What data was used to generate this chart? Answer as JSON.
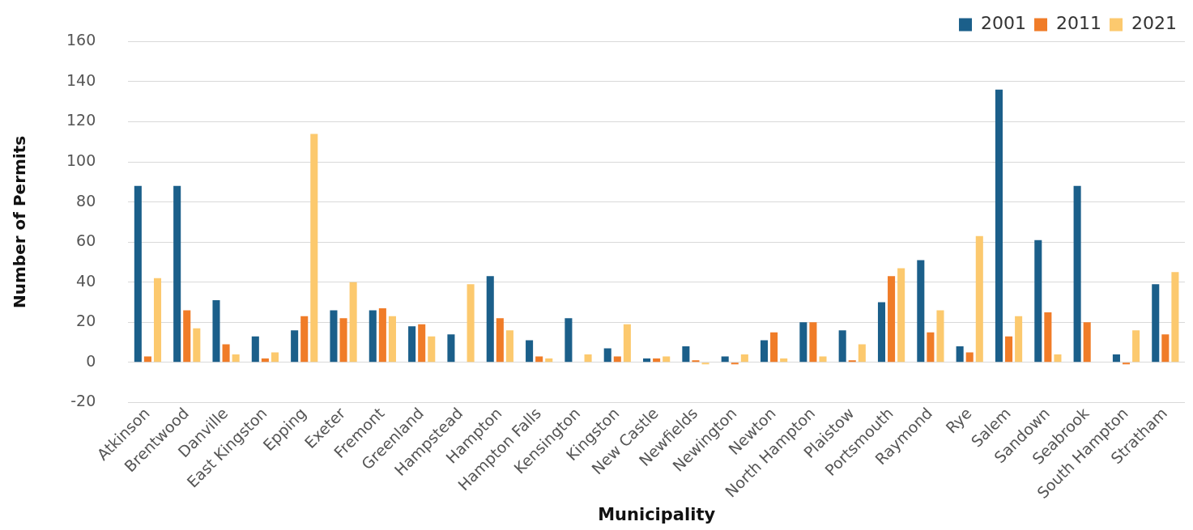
{
  "chart_data": {
    "type": "bar",
    "xlabel": "Municipality",
    "ylabel": "Number of Permits",
    "categories": [
      "Atkinson",
      "Brentwood",
      "Danville",
      "East Kingston",
      "Epping",
      "Exeter",
      "Fremont",
      "Greenland",
      "Hampstead",
      "Hampton",
      "Hampton Falls",
      "Kensington",
      "Kingston",
      "New Castle",
      "Newfields",
      "Newington",
      "Newton",
      "North Hampton",
      "Plaistow",
      "Portsmouth",
      "Raymond",
      "Rye",
      "Salem",
      "Sandown",
      "Seabrook",
      "South Hampton",
      "Stratham"
    ],
    "series": [
      {
        "name": "2001",
        "color": "#1b5f8a",
        "values": [
          88,
          88,
          31,
          13,
          16,
          26,
          26,
          18,
          14,
          43,
          11,
          22,
          7,
          2,
          8,
          3,
          11,
          20,
          16,
          30,
          51,
          8,
          136,
          61,
          88,
          4,
          39
        ]
      },
      {
        "name": "2011",
        "color": "#f07c28",
        "values": [
          3,
          26,
          9,
          2,
          23,
          22,
          27,
          19,
          0,
          22,
          3,
          0,
          3,
          2,
          1,
          -1,
          15,
          20,
          1,
          43,
          15,
          5,
          13,
          25,
          20,
          -1,
          14
        ]
      },
      {
        "name": "2021",
        "color": "#fcc96e",
        "values": [
          42,
          17,
          4,
          5,
          114,
          40,
          23,
          13,
          39,
          16,
          2,
          4,
          19,
          3,
          -1,
          4,
          2,
          3,
          9,
          47,
          26,
          63,
          23,
          4,
          0,
          16,
          45
        ]
      }
    ],
    "ylim": [
      -20,
      160
    ],
    "yticks": [
      -20,
      0,
      20,
      40,
      60,
      80,
      100,
      120,
      140,
      160
    ],
    "grid": "y",
    "legend": "top right"
  }
}
